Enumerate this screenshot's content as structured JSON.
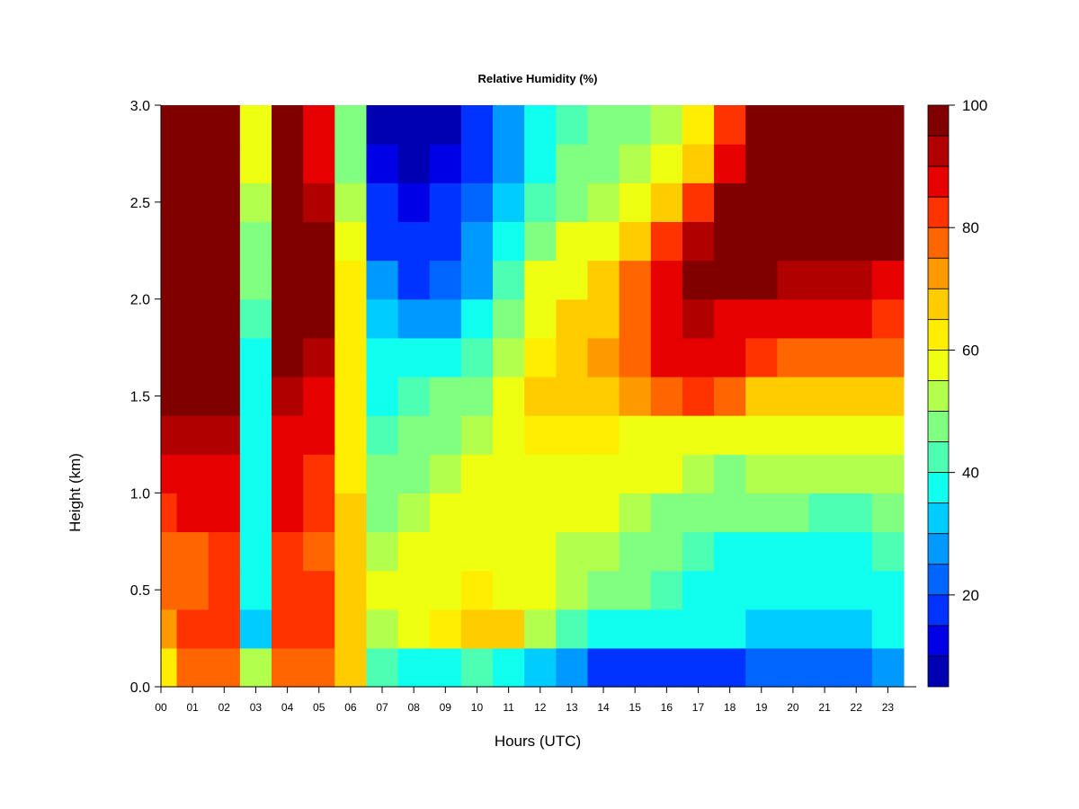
{
  "chart_data": {
    "type": "heatmap",
    "title": "Relative Humidity (%)",
    "xlabel": "Hours (UTC)",
    "ylabel": "Height (km)",
    "xlim": [
      0,
      23.9
    ],
    "ylim": [
      0,
      3.0
    ],
    "x_ticks": [
      "00",
      "01",
      "02",
      "03",
      "04",
      "05",
      "06",
      "07",
      "08",
      "09",
      "10",
      "11",
      "12",
      "13",
      "14",
      "15",
      "16",
      "17",
      "18",
      "19",
      "20",
      "21",
      "22",
      "23"
    ],
    "y_ticks": [
      "0.0",
      "0.5",
      "1.0",
      "1.5",
      "2.0",
      "2.5",
      "3.0"
    ],
    "colorbar": {
      "min": 5,
      "max": 100,
      "ticks": [
        "20",
        "40",
        "60",
        "80",
        "100"
      ],
      "levels": [
        100,
        95,
        90,
        85,
        80,
        75,
        70,
        65,
        60,
        55,
        50,
        45,
        40,
        35,
        30,
        25,
        20,
        15,
        10,
        5
      ],
      "colors": [
        "#800000",
        "#b00000",
        "#e60000",
        "#ff3300",
        "#ff6600",
        "#ff9900",
        "#ffcc00",
        "#ffee00",
        "#eeff11",
        "#b3ff4d",
        "#80ff80",
        "#4dffb3",
        "#11ffee",
        "#00ccff",
        "#0099ff",
        "#0066ff",
        "#0033ff",
        "#0000e6",
        "#0000b3",
        "#000080"
      ]
    },
    "hours": [
      0,
      1,
      2,
      3,
      4,
      5,
      6,
      7,
      8,
      9,
      10,
      11,
      12,
      13,
      14,
      15,
      16,
      17,
      18,
      19,
      20,
      21,
      22,
      23
    ],
    "heights_km": [
      0.1,
      0.3,
      0.5,
      0.7,
      0.9,
      1.1,
      1.3,
      1.5,
      1.7,
      1.9,
      2.1,
      2.3,
      2.5,
      2.7,
      2.9
    ],
    "rh_percent": [
      [
        65,
        78,
        80,
        55,
        82,
        80,
        70,
        45,
        40,
        42,
        45,
        40,
        35,
        28,
        22,
        18,
        18,
        20,
        22,
        25,
        25,
        25,
        25,
        30
      ],
      [
        75,
        85,
        85,
        35,
        85,
        85,
        72,
        55,
        60,
        65,
        68,
        70,
        55,
        45,
        40,
        38,
        38,
        38,
        38,
        35,
        35,
        35,
        35,
        40
      ],
      [
        78,
        82,
        85,
        40,
        85,
        85,
        72,
        58,
        60,
        62,
        65,
        62,
        58,
        55,
        52,
        50,
        45,
        42,
        40,
        40,
        40,
        40,
        40,
        42
      ],
      [
        80,
        82,
        85,
        42,
        85,
        82,
        70,
        55,
        58,
        60,
        60,
        58,
        58,
        55,
        55,
        52,
        50,
        45,
        42,
        42,
        42,
        42,
        42,
        44
      ],
      [
        85,
        88,
        88,
        42,
        88,
        85,
        68,
        52,
        55,
        58,
        58,
        58,
        58,
        58,
        58,
        55,
        52,
        50,
        48,
        48,
        48,
        46,
        46,
        48
      ],
      [
        90,
        92,
        92,
        42,
        90,
        85,
        65,
        48,
        52,
        55,
        58,
        60,
        62,
        62,
        62,
        60,
        58,
        55,
        52,
        55,
        55,
        55,
        55,
        55
      ],
      [
        95,
        95,
        95,
        42,
        92,
        88,
        65,
        45,
        48,
        50,
        55,
        62,
        65,
        65,
        65,
        62,
        62,
        60,
        58,
        60,
        62,
        62,
        60,
        62
      ],
      [
        100,
        100,
        100,
        42,
        95,
        90,
        65,
        42,
        45,
        48,
        52,
        60,
        68,
        70,
        72,
        75,
        82,
        85,
        78,
        72,
        70,
        70,
        70,
        70
      ],
      [
        100,
        100,
        100,
        42,
        98,
        95,
        65,
        40,
        38,
        40,
        45,
        55,
        65,
        70,
        75,
        80,
        88,
        92,
        88,
        85,
        82,
        82,
        82,
        80
      ],
      [
        100,
        100,
        100,
        45,
        100,
        98,
        65,
        35,
        30,
        32,
        38,
        50,
        62,
        68,
        72,
        80,
        90,
        95,
        92,
        90,
        88,
        90,
        90,
        85
      ],
      [
        100,
        100,
        100,
        48,
        100,
        100,
        65,
        28,
        22,
        25,
        32,
        45,
        58,
        62,
        68,
        78,
        92,
        98,
        100,
        98,
        95,
        95,
        95,
        92
      ],
      [
        100,
        100,
        100,
        52,
        100,
        100,
        60,
        22,
        18,
        20,
        28,
        40,
        52,
        58,
        62,
        70,
        85,
        95,
        100,
        100,
        100,
        100,
        100,
        100
      ],
      [
        100,
        100,
        100,
        55,
        100,
        95,
        55,
        18,
        15,
        18,
        25,
        35,
        45,
        52,
        56,
        62,
        72,
        85,
        100,
        100,
        100,
        100,
        100,
        100
      ],
      [
        100,
        100,
        100,
        58,
        100,
        92,
        52,
        15,
        12,
        15,
        22,
        32,
        42,
        48,
        52,
        56,
        62,
        72,
        92,
        100,
        100,
        100,
        100,
        100
      ],
      [
        100,
        100,
        100,
        62,
        100,
        90,
        50,
        12,
        10,
        12,
        18,
        28,
        38,
        45,
        48,
        50,
        55,
        65,
        85,
        100,
        100,
        100,
        100,
        100
      ]
    ]
  }
}
